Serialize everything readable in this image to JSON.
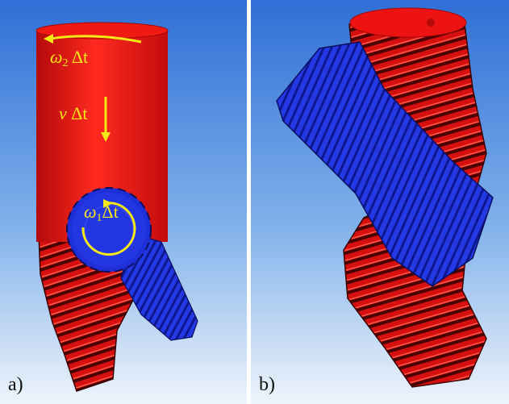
{
  "panels": [
    {
      "id": "a",
      "label": "a)",
      "annotations": {
        "omega2": {
          "symbol": "ω",
          "sub": "2",
          "suffix": " Δt"
        },
        "velocity": {
          "symbol": "v",
          "suffix": " Δt"
        },
        "omega1": {
          "symbol": "ω",
          "sub": "1",
          "suffix": "Δt"
        }
      }
    },
    {
      "id": "b",
      "label": "b)"
    }
  ],
  "colors": {
    "background_top": "#2f6fd6",
    "background_bottom": "#eef4fb",
    "cylinder_red": "#ee1313",
    "gear_blue": "#2233e0",
    "annotation_yellow": "#f4e817"
  }
}
